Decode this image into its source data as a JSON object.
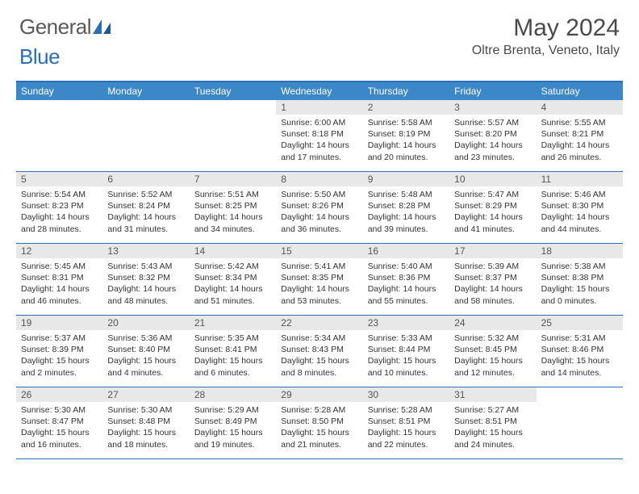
{
  "brand": {
    "part1": "General",
    "part2": "Blue"
  },
  "title": "May 2024",
  "location": "Oltre Brenta, Veneto, Italy",
  "colors": {
    "header_bar": "#3b87c8",
    "rule": "#2a6fb5",
    "daynum_bg": "#e8e8e8",
    "text": "#333333",
    "title_text": "#4a4a4a"
  },
  "daysOfWeek": [
    "Sunday",
    "Monday",
    "Tuesday",
    "Wednesday",
    "Thursday",
    "Friday",
    "Saturday"
  ],
  "weeks": [
    [
      {
        "n": "",
        "sr": "",
        "ss": "",
        "dl": ""
      },
      {
        "n": "",
        "sr": "",
        "ss": "",
        "dl": ""
      },
      {
        "n": "",
        "sr": "",
        "ss": "",
        "dl": ""
      },
      {
        "n": "1",
        "sr": "6:00 AM",
        "ss": "8:18 PM",
        "dl": "14 hours and 17 minutes."
      },
      {
        "n": "2",
        "sr": "5:58 AM",
        "ss": "8:19 PM",
        "dl": "14 hours and 20 minutes."
      },
      {
        "n": "3",
        "sr": "5:57 AM",
        "ss": "8:20 PM",
        "dl": "14 hours and 23 minutes."
      },
      {
        "n": "4",
        "sr": "5:55 AM",
        "ss": "8:21 PM",
        "dl": "14 hours and 26 minutes."
      }
    ],
    [
      {
        "n": "5",
        "sr": "5:54 AM",
        "ss": "8:23 PM",
        "dl": "14 hours and 28 minutes."
      },
      {
        "n": "6",
        "sr": "5:52 AM",
        "ss": "8:24 PM",
        "dl": "14 hours and 31 minutes."
      },
      {
        "n": "7",
        "sr": "5:51 AM",
        "ss": "8:25 PM",
        "dl": "14 hours and 34 minutes."
      },
      {
        "n": "8",
        "sr": "5:50 AM",
        "ss": "8:26 PM",
        "dl": "14 hours and 36 minutes."
      },
      {
        "n": "9",
        "sr": "5:48 AM",
        "ss": "8:28 PM",
        "dl": "14 hours and 39 minutes."
      },
      {
        "n": "10",
        "sr": "5:47 AM",
        "ss": "8:29 PM",
        "dl": "14 hours and 41 minutes."
      },
      {
        "n": "11",
        "sr": "5:46 AM",
        "ss": "8:30 PM",
        "dl": "14 hours and 44 minutes."
      }
    ],
    [
      {
        "n": "12",
        "sr": "5:45 AM",
        "ss": "8:31 PM",
        "dl": "14 hours and 46 minutes."
      },
      {
        "n": "13",
        "sr": "5:43 AM",
        "ss": "8:32 PM",
        "dl": "14 hours and 48 minutes."
      },
      {
        "n": "14",
        "sr": "5:42 AM",
        "ss": "8:34 PM",
        "dl": "14 hours and 51 minutes."
      },
      {
        "n": "15",
        "sr": "5:41 AM",
        "ss": "8:35 PM",
        "dl": "14 hours and 53 minutes."
      },
      {
        "n": "16",
        "sr": "5:40 AM",
        "ss": "8:36 PM",
        "dl": "14 hours and 55 minutes."
      },
      {
        "n": "17",
        "sr": "5:39 AM",
        "ss": "8:37 PM",
        "dl": "14 hours and 58 minutes."
      },
      {
        "n": "18",
        "sr": "5:38 AM",
        "ss": "8:38 PM",
        "dl": "15 hours and 0 minutes."
      }
    ],
    [
      {
        "n": "19",
        "sr": "5:37 AM",
        "ss": "8:39 PM",
        "dl": "15 hours and 2 minutes."
      },
      {
        "n": "20",
        "sr": "5:36 AM",
        "ss": "8:40 PM",
        "dl": "15 hours and 4 minutes."
      },
      {
        "n": "21",
        "sr": "5:35 AM",
        "ss": "8:41 PM",
        "dl": "15 hours and 6 minutes."
      },
      {
        "n": "22",
        "sr": "5:34 AM",
        "ss": "8:43 PM",
        "dl": "15 hours and 8 minutes."
      },
      {
        "n": "23",
        "sr": "5:33 AM",
        "ss": "8:44 PM",
        "dl": "15 hours and 10 minutes."
      },
      {
        "n": "24",
        "sr": "5:32 AM",
        "ss": "8:45 PM",
        "dl": "15 hours and 12 minutes."
      },
      {
        "n": "25",
        "sr": "5:31 AM",
        "ss": "8:46 PM",
        "dl": "15 hours and 14 minutes."
      }
    ],
    [
      {
        "n": "26",
        "sr": "5:30 AM",
        "ss": "8:47 PM",
        "dl": "15 hours and 16 minutes."
      },
      {
        "n": "27",
        "sr": "5:30 AM",
        "ss": "8:48 PM",
        "dl": "15 hours and 18 minutes."
      },
      {
        "n": "28",
        "sr": "5:29 AM",
        "ss": "8:49 PM",
        "dl": "15 hours and 19 minutes."
      },
      {
        "n": "29",
        "sr": "5:28 AM",
        "ss": "8:50 PM",
        "dl": "15 hours and 21 minutes."
      },
      {
        "n": "30",
        "sr": "5:28 AM",
        "ss": "8:51 PM",
        "dl": "15 hours and 22 minutes."
      },
      {
        "n": "31",
        "sr": "5:27 AM",
        "ss": "8:51 PM",
        "dl": "15 hours and 24 minutes."
      },
      {
        "n": "",
        "sr": "",
        "ss": "",
        "dl": ""
      }
    ]
  ],
  "labels": {
    "sunrise": "Sunrise: ",
    "sunset": "Sunset: ",
    "daylight": "Daylight: "
  }
}
